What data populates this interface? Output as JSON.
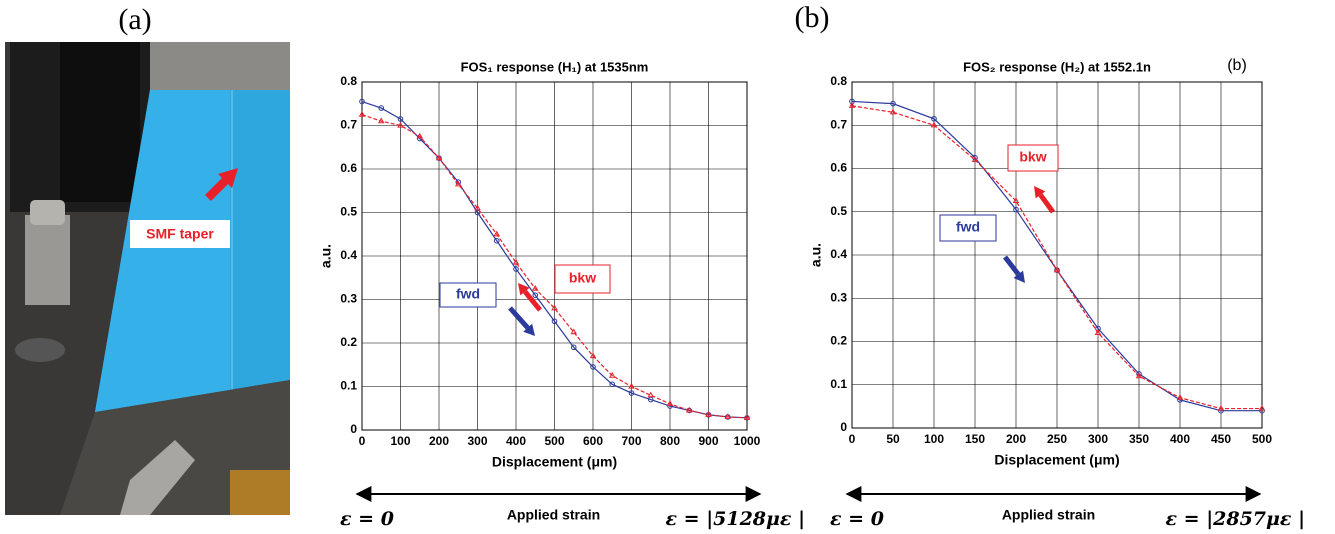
{
  "photo": {
    "label": "(a)",
    "annotation": "SMF taper"
  },
  "chart_data": [
    {
      "type": "line",
      "title": "FOS₁ response (H₁) at 1535nm",
      "x_label": "Displacement (μm)",
      "y_label": "a.u.",
      "x": [
        0,
        50,
        100,
        150,
        200,
        250,
        300,
        350,
        400,
        450,
        500,
        550,
        600,
        650,
        700,
        750,
        800,
        850,
        900,
        950,
        1000
      ],
      "series": [
        {
          "name": "fwd",
          "color": "#2b3a9b",
          "values": [
            0.755,
            0.74,
            0.715,
            0.67,
            0.625,
            0.57,
            0.5,
            0.435,
            0.37,
            0.31,
            0.25,
            0.19,
            0.145,
            0.105,
            0.085,
            0.07,
            0.055,
            0.045,
            0.035,
            0.03,
            0.028
          ]
        },
        {
          "name": "bkw",
          "color": "#e8202a",
          "values": [
            0.725,
            0.71,
            0.7,
            0.675,
            0.625,
            0.565,
            0.51,
            0.45,
            0.385,
            0.325,
            0.28,
            0.225,
            0.17,
            0.125,
            0.1,
            0.08,
            0.06,
            0.045,
            0.035,
            0.03,
            0.028
          ]
        }
      ],
      "xlim": [
        0,
        1000
      ],
      "xticks": [
        0,
        100,
        200,
        300,
        400,
        500,
        600,
        700,
        800,
        900,
        1000
      ],
      "ylim": [
        0,
        0.8
      ],
      "yticks": [
        0,
        0.1,
        0.2,
        0.3,
        0.4,
        0.5,
        0.6,
        0.7,
        0.8
      ],
      "grid": true,
      "strain": {
        "start": "ε = 0",
        "label": "Applied strain",
        "end": "ε = |5128με |"
      }
    },
    {
      "type": "line",
      "title": "FOS₂ response (H₂) at 1552.1n",
      "panel_label": "(b)",
      "inset_label": "(b)",
      "x_label": "Displacement (μm)",
      "y_label": "a.u.",
      "x": [
        0,
        50,
        100,
        150,
        200,
        250,
        300,
        350,
        400,
        450,
        500
      ],
      "series": [
        {
          "name": "fwd",
          "color": "#2b3a9b",
          "values": [
            0.755,
            0.75,
            0.715,
            0.625,
            0.505,
            0.365,
            0.23,
            0.125,
            0.065,
            0.04,
            0.04
          ]
        },
        {
          "name": "bkw",
          "color": "#e8202a",
          "values": [
            0.745,
            0.73,
            0.7,
            0.62,
            0.525,
            0.365,
            0.22,
            0.12,
            0.07,
            0.045,
            0.045
          ]
        }
      ],
      "xlim": [
        0,
        500
      ],
      "xticks": [
        0,
        50,
        100,
        150,
        200,
        250,
        300,
        350,
        400,
        450,
        500
      ],
      "ylim": [
        0,
        0.8
      ],
      "yticks": [
        0,
        0.1,
        0.2,
        0.3,
        0.4,
        0.5,
        0.6,
        0.7,
        0.8
      ],
      "grid": true,
      "strain": {
        "start": "ε = 0",
        "label": "Applied strain",
        "end": "ε = |2857με |"
      }
    }
  ]
}
